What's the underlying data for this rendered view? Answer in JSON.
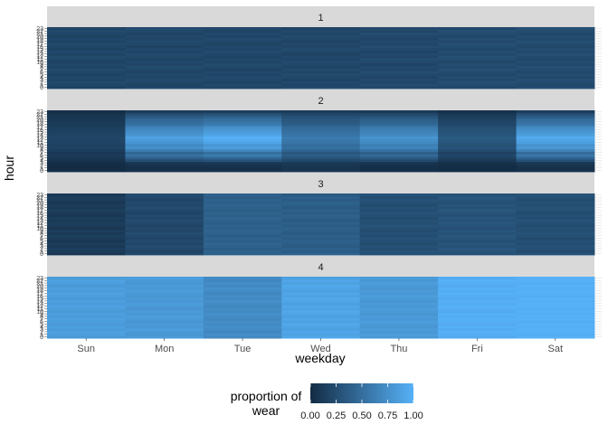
{
  "chart_data": {
    "type": "heatmap",
    "title": "",
    "xlabel": "weekday",
    "ylabel": "hour",
    "x_categories": [
      "Sun",
      "Mon",
      "Tue",
      "Wed",
      "Thu",
      "Fri",
      "Sat"
    ],
    "y_categories": [
      "0",
      "1",
      "2",
      "3",
      "4",
      "5",
      "6",
      "7",
      "8",
      "9",
      "10",
      "11",
      "12",
      "13",
      "14",
      "15",
      "16",
      "17",
      "18",
      "19",
      "20",
      "21",
      "22",
      "23"
    ],
    "facets": [
      "1",
      "2",
      "3",
      "4"
    ],
    "facet_values": [
      [
        0.2,
        0.21,
        0.21,
        0.21,
        0.22,
        0.24,
        0.24
      ],
      [
        0.2,
        0.88,
        1.0,
        0.55,
        0.78,
        0.35,
        0.95
      ],
      [
        0.12,
        0.22,
        0.4,
        0.38,
        0.27,
        0.3,
        0.27
      ],
      [
        0.85,
        0.82,
        0.72,
        0.9,
        0.82,
        0.98,
        1.0
      ]
    ],
    "colorbar": {
      "title": "proportion of\nwear",
      "ticks": [
        "0.00",
        "0.25",
        "0.50",
        "0.75",
        "1.00"
      ],
      "range": [
        0,
        1
      ],
      "low_color": "#132B43",
      "high_color": "#56B1F7"
    }
  }
}
